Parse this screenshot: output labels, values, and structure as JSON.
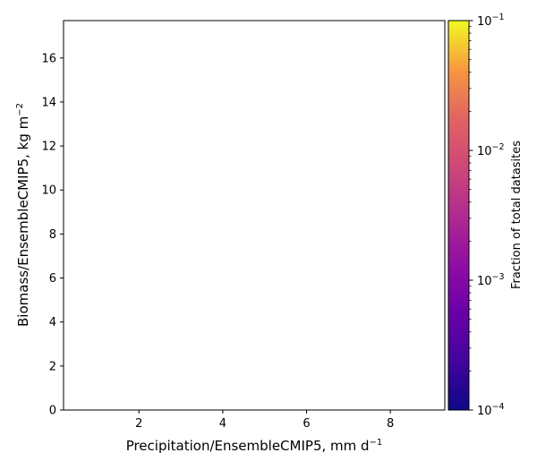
{
  "chart_data": {
    "type": "heatmap",
    "title": "",
    "xlabel": {
      "text": "Precipitation/EnsembleCMIP5,  mm d",
      "sup": "−1"
    },
    "ylabel": {
      "text": "Biomass/EnsembleCMIP5,  kg m",
      "sup": "−2"
    },
    "xlim": [
      0.2,
      9.3
    ],
    "ylim": [
      0,
      17.7
    ],
    "xticks": [
      2,
      4,
      6,
      8
    ],
    "yticks": [
      0,
      2,
      4,
      6,
      8,
      10,
      12,
      14,
      16
    ],
    "cells": [],
    "colorbar": {
      "label": "Fraction of total datasites",
      "scale": "log",
      "range": [
        0.0001,
        0.1
      ],
      "colormap": "plasma",
      "major_ticks": [
        {
          "value": 0.1,
          "base": "10",
          "exp": "−1"
        },
        {
          "value": 0.01,
          "base": "10",
          "exp": "−2"
        },
        {
          "value": 0.001,
          "base": "10",
          "exp": "−3"
        },
        {
          "value": 0.0001,
          "base": "10",
          "exp": "−4"
        }
      ]
    }
  }
}
